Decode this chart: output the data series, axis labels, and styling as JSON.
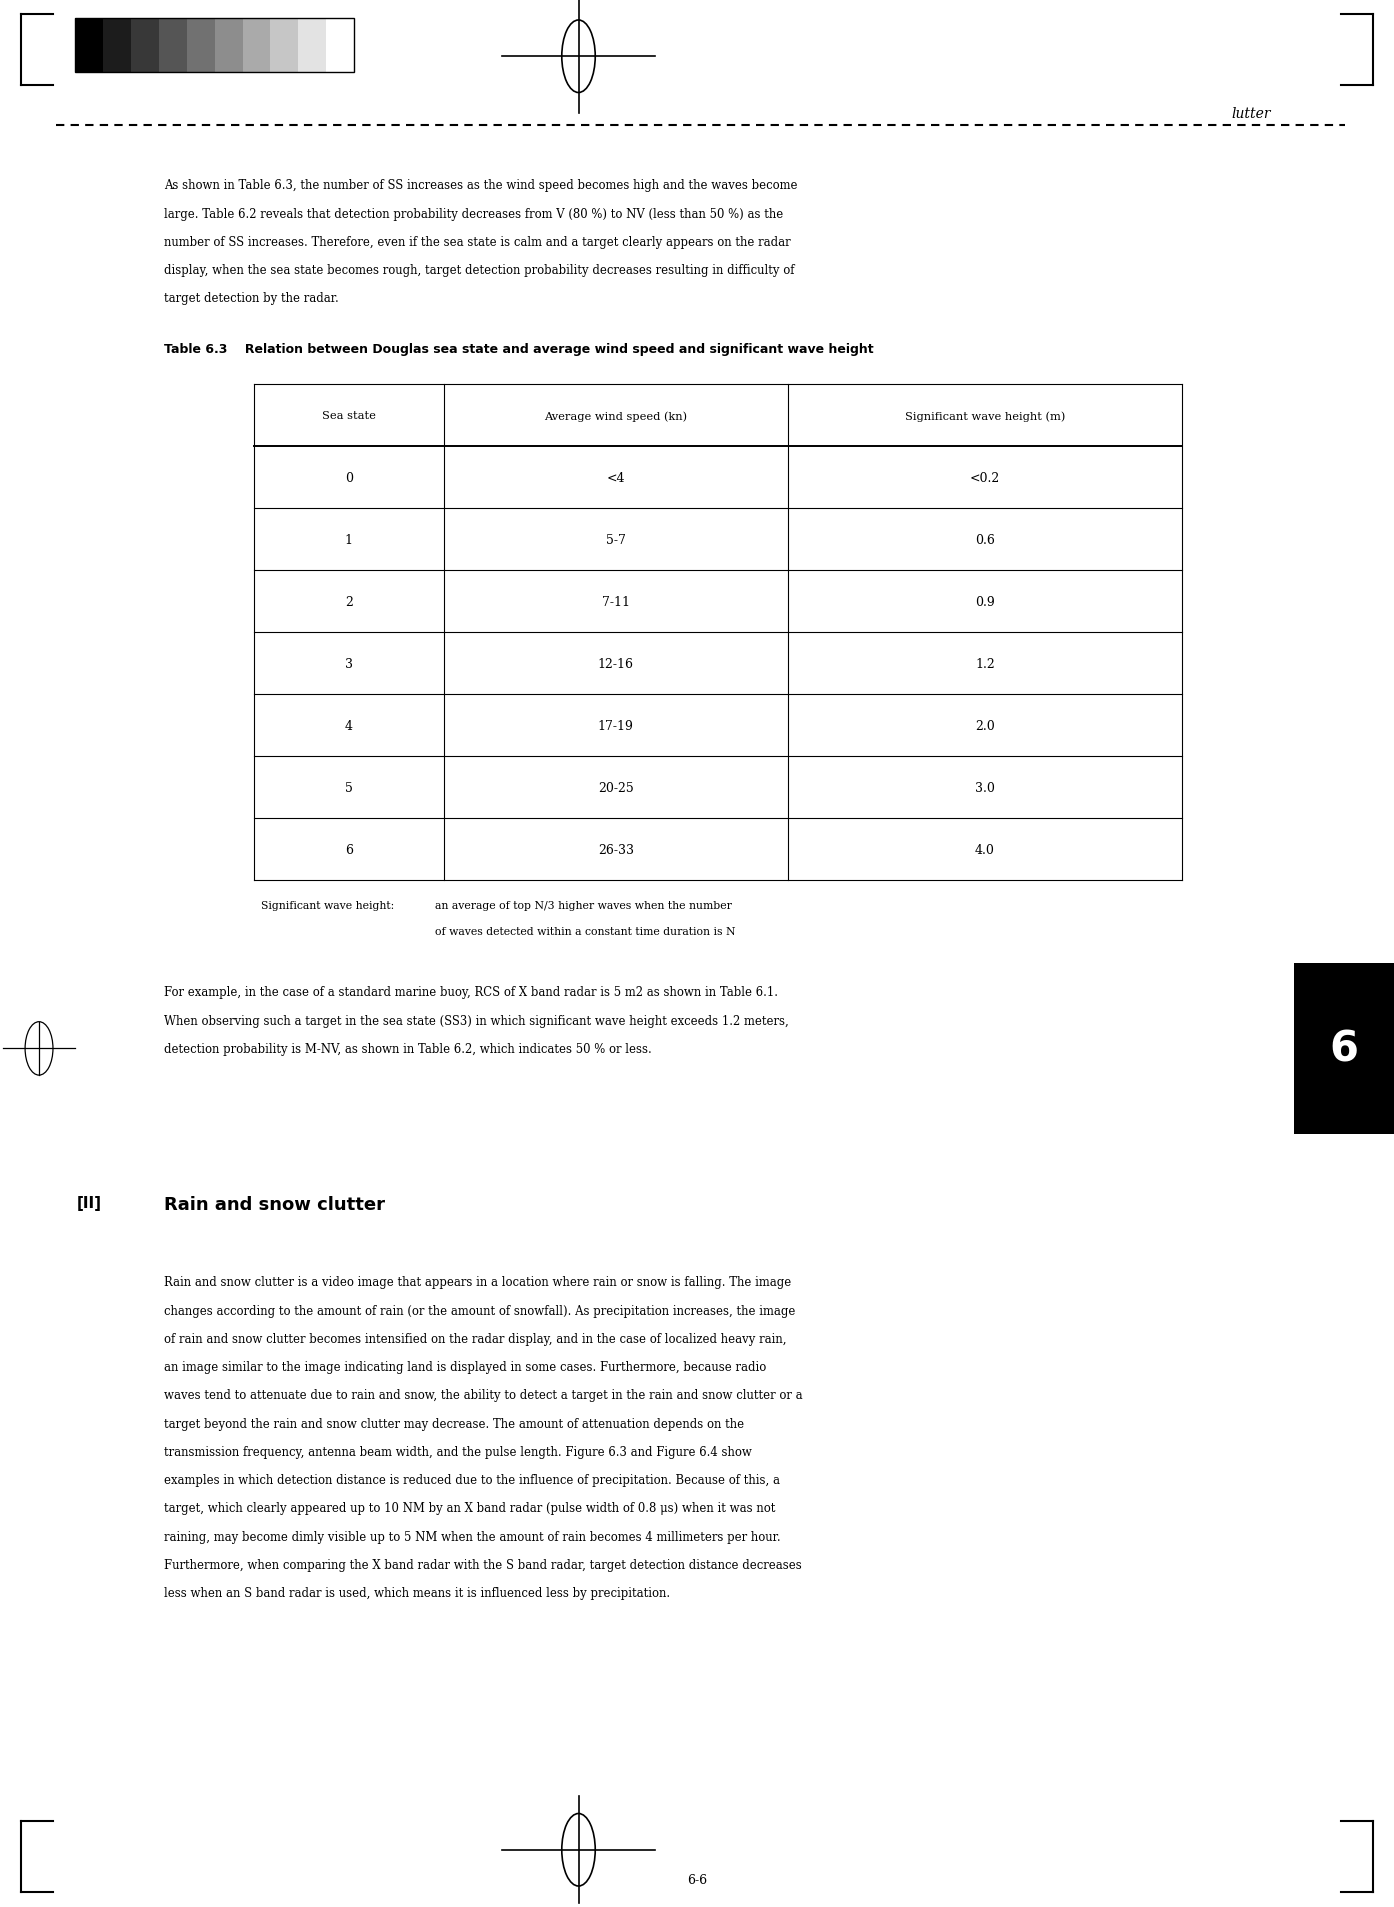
{
  "page_width": 13.94,
  "page_height": 19.08,
  "background_color": "#ffffff",
  "header_text": "lutter",
  "intro_lines": [
    "As shown in Table 6.3, the number of SS increases as the wind speed becomes high and the waves become",
    "large. Table 6.2 reveals that detection probability decreases from V (80 %) to NV (less than 50 %) as the",
    "number of SS increases. Therefore, even if the sea state is calm and a target clearly appears on the radar",
    "display, when the sea state becomes rough, target detection probability decreases resulting in difficulty of",
    "target detection by the radar."
  ],
  "table_title": "Table 6.3    Relation between Douglas sea state and average wind speed and significant wave height",
  "table_headers": [
    "Sea state",
    "Average wind speed (kn)",
    "Significant wave height (m)"
  ],
  "table_rows": [
    [
      "0",
      "<4",
      "<0.2"
    ],
    [
      "1",
      "5-7",
      "0.6"
    ],
    [
      "2",
      "7-11",
      "0.9"
    ],
    [
      "3",
      "12-16",
      "1.2"
    ],
    [
      "4",
      "17-19",
      "2.0"
    ],
    [
      "5",
      "20-25",
      "3.0"
    ],
    [
      "6",
      "26-33",
      "4.0"
    ]
  ],
  "footnote_label": "Significant wave height:",
  "footnote_line1": "an average of top N/3 higher waves when the number",
  "footnote_line2": "of waves detected within a constant time duration is N",
  "middle_lines": [
    "For example, in the case of a standard marine buoy, RCS of X band radar is 5 m2 as shown in Table 6.1.",
    "When observing such a target in the sea state (SS3) in which significant wave height exceeds 1.2 meters,",
    "detection probability is M-NV, as shown in Table 6.2, which indicates 50 % or less."
  ],
  "section_header_prefix": "[II]",
  "section_header_text": "Rain and snow clutter",
  "main_lines": [
    "Rain and snow clutter is a video image that appears in a location where rain or snow is falling. The image",
    "changes according to the amount of rain (or the amount of snowfall). As precipitation increases, the image",
    "of rain and snow clutter becomes intensified on the radar display, and in the case of localized heavy rain,",
    "an image similar to the image indicating land is displayed in some cases. Furthermore, because radio",
    "waves tend to attenuate due to rain and snow, the ability to detect a target in the rain and snow clutter or a",
    "target beyond the rain and snow clutter may decrease. The amount of attenuation depends on the",
    "transmission frequency, antenna beam width, and the pulse length. Figure 6.3 and Figure 6.4 show",
    "examples in which detection distance is reduced due to the influence of precipitation. Because of this, a",
    "target, which clearly appeared up to 10 NM by an X band radar (pulse width of 0.8 μs) when it was not",
    "raining, may become dimly visible up to 5 NM when the amount of rain becomes 4 millimeters per hour.",
    "Furthermore, when comparing the X band radar with the S band radar, target detection distance decreases",
    "less when an S band radar is used, which means it is influenced less by precipitation."
  ],
  "page_number": "6-6",
  "chapter_number": "6",
  "grayscale_colors": [
    "#000000",
    "#1c1c1c",
    "#383838",
    "#555555",
    "#717171",
    "#8d8d8d",
    "#aaaaaa",
    "#c6c6c6",
    "#e3e3e3",
    "#ffffff"
  ]
}
